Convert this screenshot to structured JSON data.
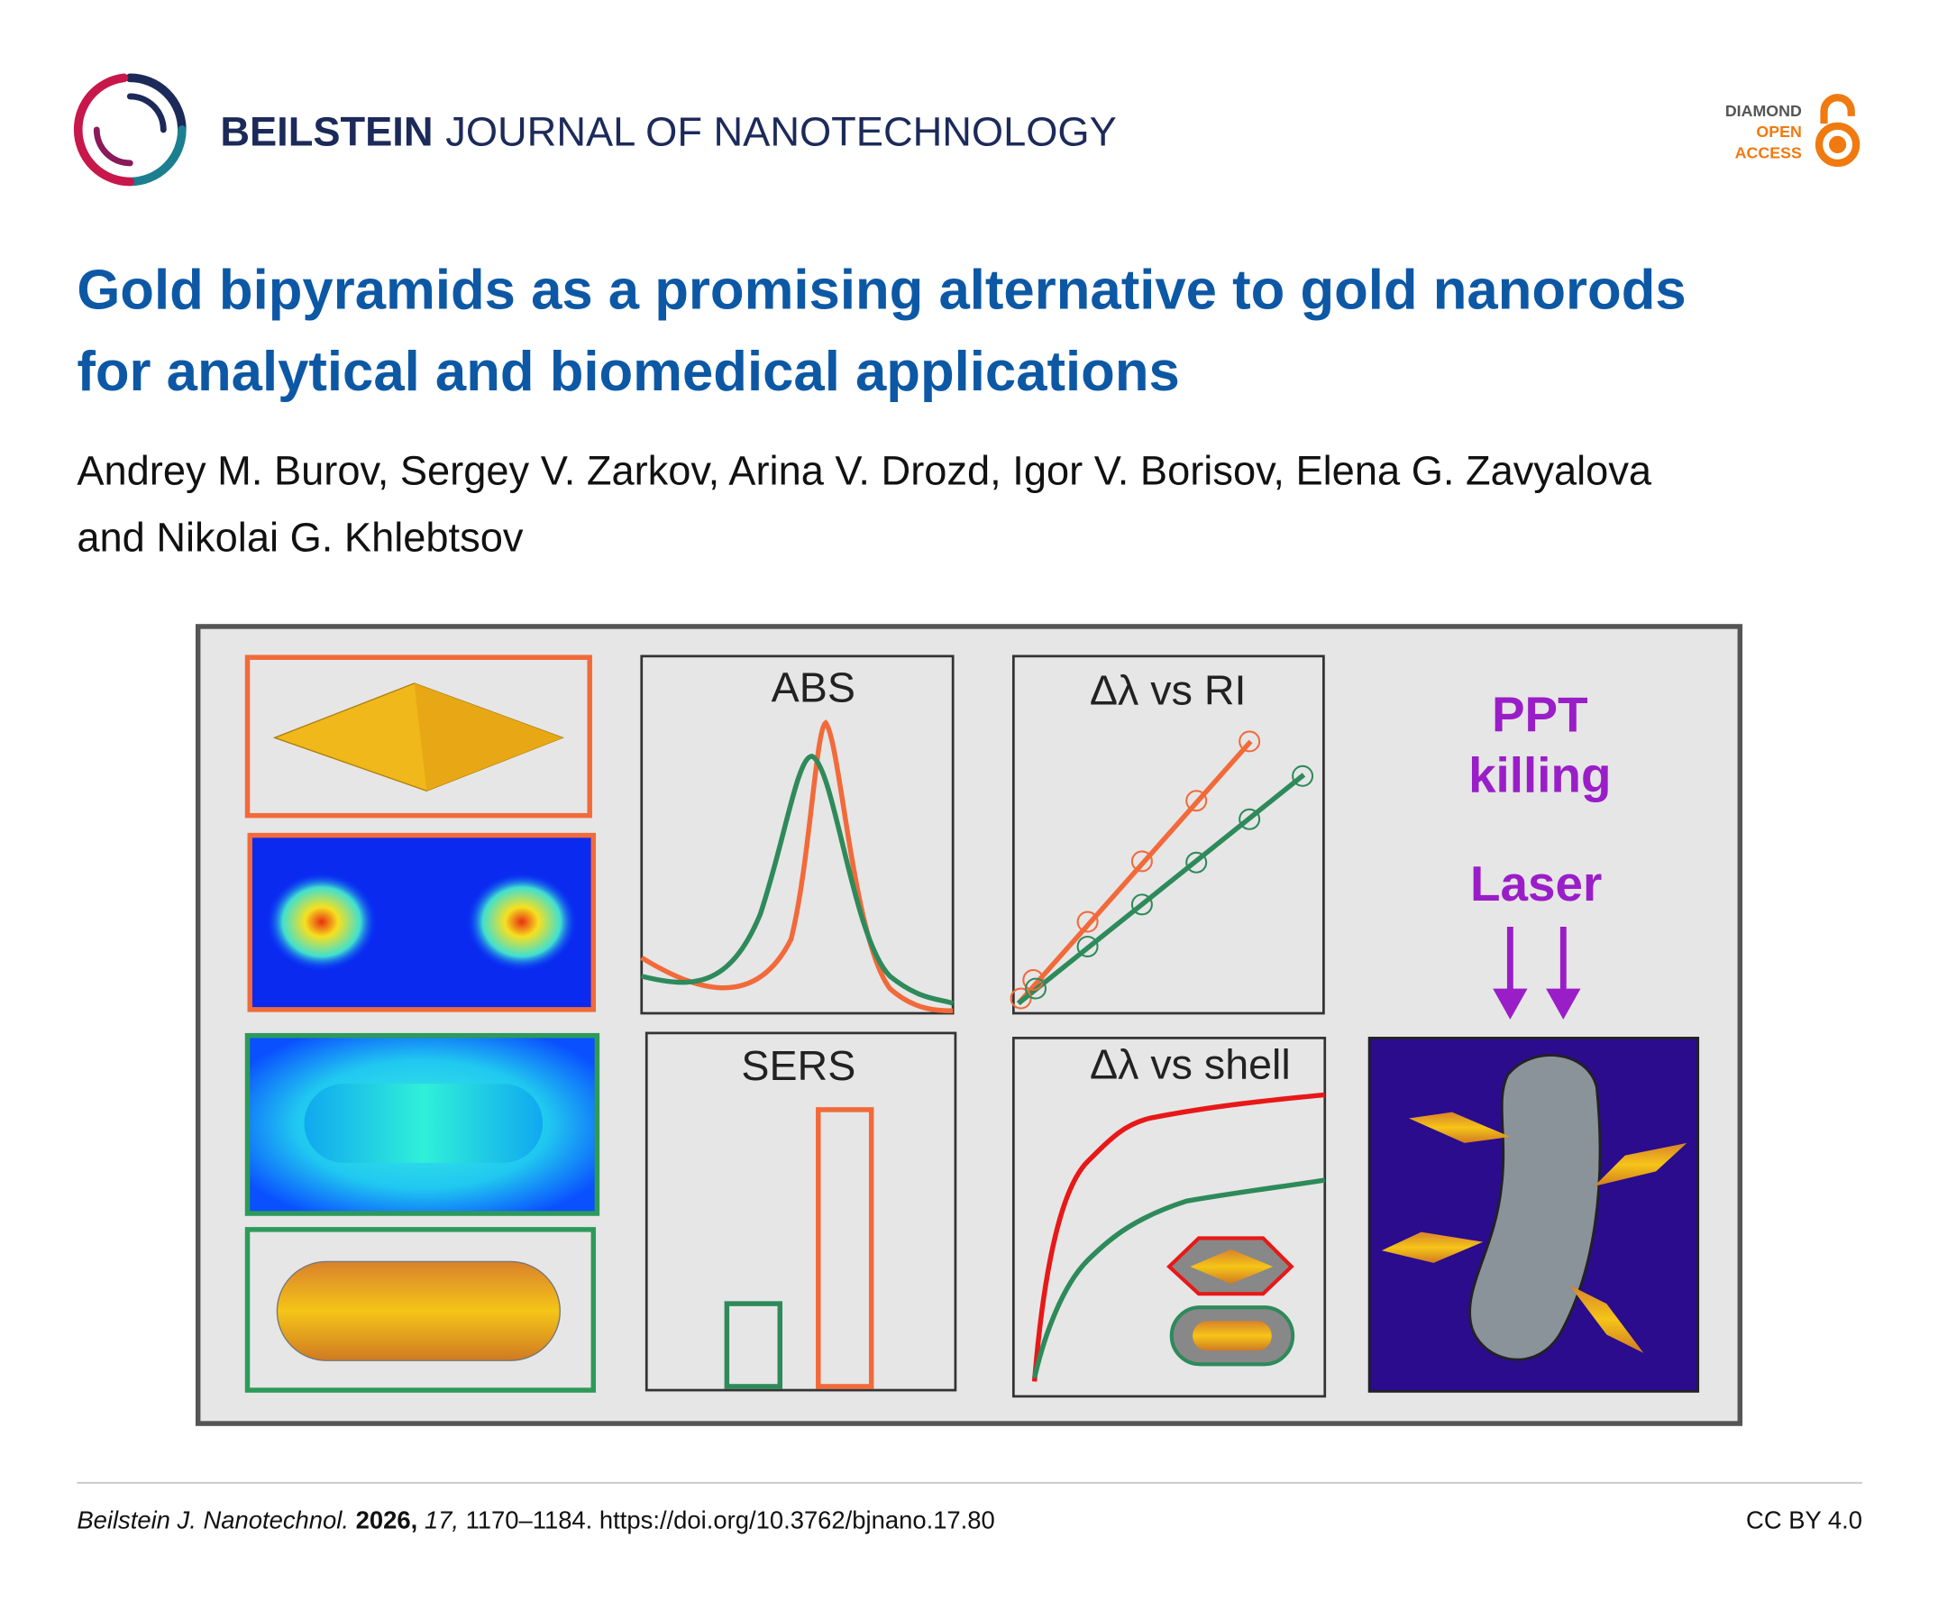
{
  "header": {
    "journal_bold": "BEILSTEIN",
    "journal_rest": "JOURNAL OF NANOTECHNOLOGY",
    "badge": [
      "DIAMOND",
      "OPEN",
      "ACCESS"
    ]
  },
  "article": {
    "title_lines": [
      "Gold bipyramids as a promising alternative to gold nanorods",
      "for analytical and biomedical applications"
    ],
    "author_lines": [
      "Andrey M. Burov, Sergey V. Zarkov, Arina V. Drozd, Igor V. Borisov, Elena G. Zavyalova",
      "and Nikolai G. Khlebtsov"
    ]
  },
  "graphical_abstract": {
    "abs_label": "ABS",
    "ri_label": "Δλ vs RI",
    "sers_label": "SERS",
    "shell_label": "Δλ vs shell",
    "ppt_lines": [
      "PPT",
      "killing"
    ],
    "laser_label": "Laser"
  },
  "footer": {
    "journal": "Beilstein J. Nanotechnol.",
    "year": "2026,",
    "volume": "17,",
    "pages": "1170–1184.",
    "doi": "https://doi.org/10.3762/bjnano.17.80",
    "license": "CC BY 4.0"
  }
}
